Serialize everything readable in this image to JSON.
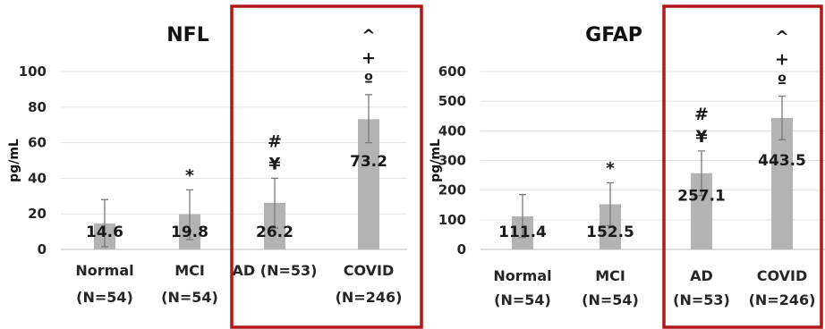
{
  "chart_data": [
    {
      "type": "bar",
      "title": "NFL",
      "ylabel": "pg/mL",
      "ylim": [
        0,
        100
      ],
      "yticks": [
        "0",
        "20",
        "40",
        "60",
        "80",
        "100"
      ],
      "categories": [
        [
          "Normal",
          "(N=54)"
        ],
        [
          "MCI",
          "(N=54)"
        ],
        [
          "AD (N=53)"
        ],
        [
          "COVID",
          "(N=246)"
        ]
      ],
      "values": [
        14.6,
        19.8,
        26.2,
        73.2
      ],
      "value_labels": [
        "14.6",
        "19.8",
        "26.2",
        "73.2"
      ],
      "error_upper": [
        28,
        33.5,
        40,
        87
      ],
      "error_lower": [
        1.5,
        5.5,
        12,
        60
      ],
      "significance_marks": [
        [],
        [
          "*"
        ],
        [
          "#",
          "¥"
        ],
        [
          "^",
          "+",
          "º"
        ]
      ],
      "highlight_box": [
        "AD (N=53)",
        "COVID"
      ],
      "bar_color": "#b3b3b3",
      "highlight_color": "#b01818",
      "grid": true
    },
    {
      "type": "bar",
      "title": "GFAP",
      "ylabel": "pg/mL",
      "ylim": [
        0,
        600
      ],
      "yticks": [
        "0",
        "100",
        "200",
        "300",
        "400",
        "500",
        "600"
      ],
      "categories": [
        [
          "Normal",
          "(N=54)"
        ],
        [
          "MCI",
          "(N=54)"
        ],
        [
          "AD",
          "(N=53)"
        ],
        [
          "COVID",
          "(N=246)"
        ]
      ],
      "values": [
        111.4,
        152.5,
        257.1,
        443.5
      ],
      "value_labels": [
        "111.4",
        "152.5",
        "257.1",
        "443.5"
      ],
      "error_upper": [
        185,
        225,
        332,
        517
      ],
      "error_lower": [
        40,
        80,
        182,
        370
      ],
      "significance_marks": [
        [],
        [
          "*"
        ],
        [
          "#",
          "¥"
        ],
        [
          "^",
          "+",
          "º"
        ]
      ],
      "highlight_box": [
        "AD",
        "COVID"
      ],
      "bar_color": "#b3b3b3",
      "highlight_color": "#b01818",
      "grid": true
    }
  ]
}
